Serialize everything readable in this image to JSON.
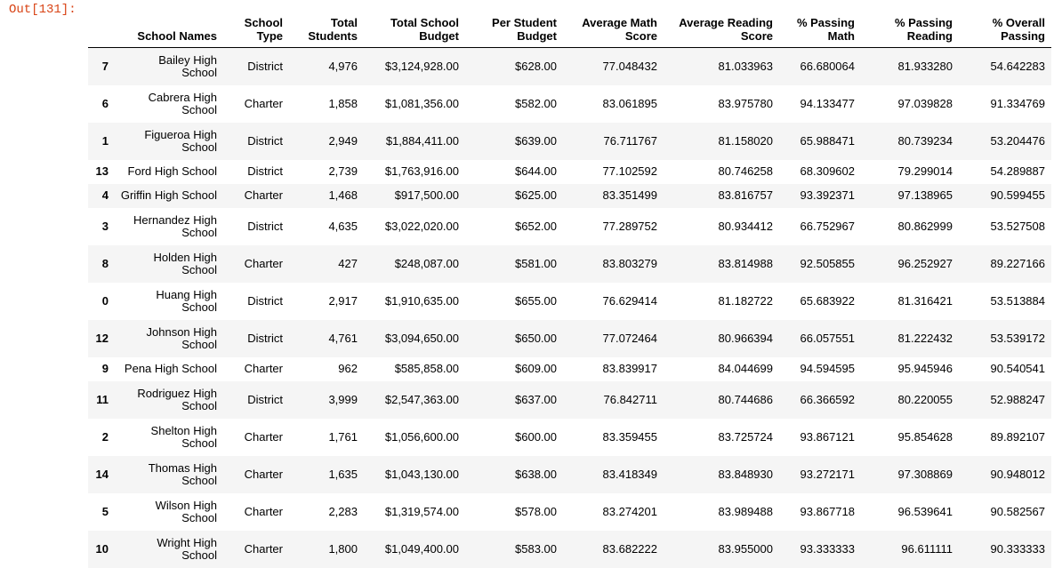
{
  "output_prompt": "Out[131]:",
  "table": {
    "columns": [
      {
        "key": "index",
        "label": ""
      },
      {
        "key": "school_name",
        "label_lines": [
          "School Names"
        ]
      },
      {
        "key": "school_type",
        "label_lines": [
          "School",
          "Type"
        ]
      },
      {
        "key": "total_students",
        "label_lines": [
          "Total",
          "Students"
        ]
      },
      {
        "key": "total_budget",
        "label_lines": [
          "Total School",
          "Budget"
        ]
      },
      {
        "key": "per_student_budget",
        "label_lines": [
          "Per Student",
          "Budget"
        ]
      },
      {
        "key": "avg_math",
        "label_lines": [
          "Average Math",
          "Score"
        ]
      },
      {
        "key": "avg_reading",
        "label_lines": [
          "Average Reading",
          "Score"
        ]
      },
      {
        "key": "pct_math",
        "label_lines": [
          "% Passing",
          "Math"
        ]
      },
      {
        "key": "pct_reading",
        "label_lines": [
          "% Passing",
          "Reading"
        ]
      },
      {
        "key": "pct_overall",
        "label_lines": [
          "% Overall",
          "Passing"
        ]
      }
    ],
    "rows": [
      {
        "index": "7",
        "name_lines": [
          "Bailey High",
          "School"
        ],
        "type": "District",
        "students": "4,976",
        "budget": "$3,124,928.00",
        "per_student": "$628.00",
        "math": "77.048432",
        "reading": "81.033963",
        "pass_math": "66.680064",
        "pass_reading": "81.933280",
        "overall": "54.642283"
      },
      {
        "index": "6",
        "name_lines": [
          "Cabrera High",
          "School"
        ],
        "type": "Charter",
        "students": "1,858",
        "budget": "$1,081,356.00",
        "per_student": "$582.00",
        "math": "83.061895",
        "reading": "83.975780",
        "pass_math": "94.133477",
        "pass_reading": "97.039828",
        "overall": "91.334769"
      },
      {
        "index": "1",
        "name_lines": [
          "Figueroa High",
          "School"
        ],
        "type": "District",
        "students": "2,949",
        "budget": "$1,884,411.00",
        "per_student": "$639.00",
        "math": "76.711767",
        "reading": "81.158020",
        "pass_math": "65.988471",
        "pass_reading": "80.739234",
        "overall": "53.204476"
      },
      {
        "index": "13",
        "name_lines": [
          "Ford High School"
        ],
        "type": "District",
        "students": "2,739",
        "budget": "$1,763,916.00",
        "per_student": "$644.00",
        "math": "77.102592",
        "reading": "80.746258",
        "pass_math": "68.309602",
        "pass_reading": "79.299014",
        "overall": "54.289887"
      },
      {
        "index": "4",
        "name_lines": [
          "Griffin High School"
        ],
        "type": "Charter",
        "students": "1,468",
        "budget": "$917,500.00",
        "per_student": "$625.00",
        "math": "83.351499",
        "reading": "83.816757",
        "pass_math": "93.392371",
        "pass_reading": "97.138965",
        "overall": "90.599455"
      },
      {
        "index": "3",
        "name_lines": [
          "Hernandez High",
          "School"
        ],
        "type": "District",
        "students": "4,635",
        "budget": "$3,022,020.00",
        "per_student": "$652.00",
        "math": "77.289752",
        "reading": "80.934412",
        "pass_math": "66.752967",
        "pass_reading": "80.862999",
        "overall": "53.527508"
      },
      {
        "index": "8",
        "name_lines": [
          "Holden High",
          "School"
        ],
        "type": "Charter",
        "students": "427",
        "budget": "$248,087.00",
        "per_student": "$581.00",
        "math": "83.803279",
        "reading": "83.814988",
        "pass_math": "92.505855",
        "pass_reading": "96.252927",
        "overall": "89.227166"
      },
      {
        "index": "0",
        "name_lines": [
          "Huang High",
          "School"
        ],
        "type": "District",
        "students": "2,917",
        "budget": "$1,910,635.00",
        "per_student": "$655.00",
        "math": "76.629414",
        "reading": "81.182722",
        "pass_math": "65.683922",
        "pass_reading": "81.316421",
        "overall": "53.513884"
      },
      {
        "index": "12",
        "name_lines": [
          "Johnson High",
          "School"
        ],
        "type": "District",
        "students": "4,761",
        "budget": "$3,094,650.00",
        "per_student": "$650.00",
        "math": "77.072464",
        "reading": "80.966394",
        "pass_math": "66.057551",
        "pass_reading": "81.222432",
        "overall": "53.539172"
      },
      {
        "index": "9",
        "name_lines": [
          "Pena High School"
        ],
        "type": "Charter",
        "students": "962",
        "budget": "$585,858.00",
        "per_student": "$609.00",
        "math": "83.839917",
        "reading": "84.044699",
        "pass_math": "94.594595",
        "pass_reading": "95.945946",
        "overall": "90.540541"
      },
      {
        "index": "11",
        "name_lines": [
          "Rodriguez High",
          "School"
        ],
        "type": "District",
        "students": "3,999",
        "budget": "$2,547,363.00",
        "per_student": "$637.00",
        "math": "76.842711",
        "reading": "80.744686",
        "pass_math": "66.366592",
        "pass_reading": "80.220055",
        "overall": "52.988247"
      },
      {
        "index": "2",
        "name_lines": [
          "Shelton High",
          "School"
        ],
        "type": "Charter",
        "students": "1,761",
        "budget": "$1,056,600.00",
        "per_student": "$600.00",
        "math": "83.359455",
        "reading": "83.725724",
        "pass_math": "93.867121",
        "pass_reading": "95.854628",
        "overall": "89.892107"
      },
      {
        "index": "14",
        "name_lines": [
          "Thomas High",
          "School"
        ],
        "type": "Charter",
        "students": "1,635",
        "budget": "$1,043,130.00",
        "per_student": "$638.00",
        "math": "83.418349",
        "reading": "83.848930",
        "pass_math": "93.272171",
        "pass_reading": "97.308869",
        "overall": "90.948012"
      },
      {
        "index": "5",
        "name_lines": [
          "Wilson High",
          "School"
        ],
        "type": "Charter",
        "students": "2,283",
        "budget": "$1,319,574.00",
        "per_student": "$578.00",
        "math": "83.274201",
        "reading": "83.989488",
        "pass_math": "93.867718",
        "pass_reading": "96.539641",
        "overall": "90.582567"
      },
      {
        "index": "10",
        "name_lines": [
          "Wright High",
          "School"
        ],
        "type": "Charter",
        "students": "1,800",
        "budget": "$1,049,400.00",
        "per_student": "$583.00",
        "math": "83.682222",
        "reading": "83.955000",
        "pass_math": "93.333333",
        "pass_reading": "96.611111",
        "overall": "90.333333"
      }
    ]
  }
}
